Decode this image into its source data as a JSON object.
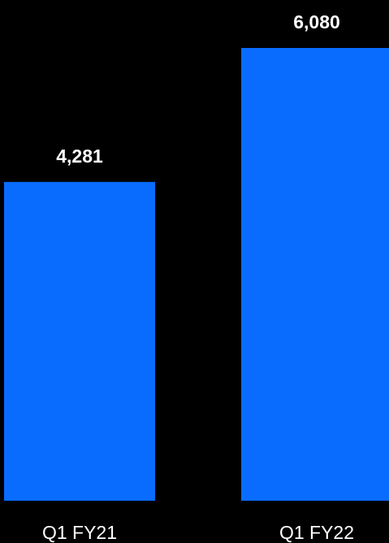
{
  "chart_data": {
    "type": "bar",
    "categories": [
      "Q1 FY21",
      "Q1 FY22"
    ],
    "values": [
      4281,
      6080
    ],
    "value_labels": [
      "4,281",
      "6,080"
    ],
    "bar_color": "#0A6CFF",
    "background_color": "#000000",
    "label_color": "#FFFFFF",
    "grid": false,
    "legend": false
  }
}
